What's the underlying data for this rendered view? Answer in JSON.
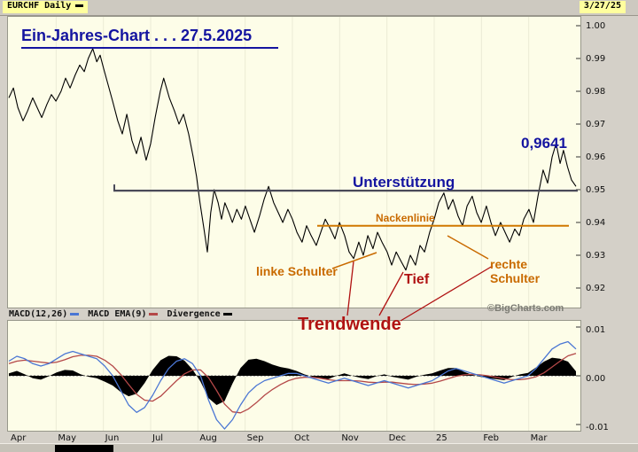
{
  "window": {
    "symbol_label": "EURCHF Daily",
    "date_badge": "3/27/25"
  },
  "annotations": {
    "title": "Ein-Jahres-Chart . . . 27.5.2025",
    "support_label": "Unterstützung",
    "neckline_label": "Nackenlinie",
    "left_shoulder": "linke Schulter",
    "right_shoulder_line1": "rechte",
    "right_shoulder_line2": "Schulter",
    "low_label": "Tief",
    "reversal_label": "Trendwende",
    "price_peak": "0,9641",
    "watermark": "©BigCharts.com"
  },
  "legend": {
    "macd": "MACD(12,26)",
    "ema": "MACD EMA(9)",
    "divergence": "Divergence"
  },
  "x_axis_months": [
    "Apr",
    "May",
    "Jun",
    "Jul",
    "Aug",
    "Sep",
    "Oct",
    "Nov",
    "Dec",
    "25",
    "Feb",
    "Mar"
  ],
  "price_axis": [
    "1.00",
    "0.99",
    "0.98",
    "0.97",
    "0.96",
    "0.95",
    "0.94",
    "0.93",
    "0.92"
  ],
  "macd_axis": [
    "0.01",
    "0.00",
    "-0.01"
  ],
  "colors": {
    "navy": "#1414a0",
    "orange": "#c96a00",
    "darkred": "#b01212",
    "priceline": "#000000",
    "macdline": "#4a76d4",
    "emaline": "#b44848",
    "histogram": "#000000",
    "support": "#4a4a58",
    "neckline": "#d07800",
    "chartbg": "#fdfde8",
    "framebg": "#d4d0c8",
    "chipbg": "#ffff9e",
    "watermarkgray": "#7c7c74"
  },
  "overlay_lines": {
    "orange": [
      [
        375,
        303,
        425,
        285
      ],
      [
        505,
        266,
        551,
        292
      ]
    ],
    "red": [
      [
        392,
        356,
        399,
        295
      ],
      [
        428,
        356,
        455,
        307
      ],
      [
        452,
        362,
        556,
        300
      ]
    ]
  },
  "chart_data": [
    {
      "type": "line",
      "title": "EURCHF daily close, Apr 2024 - Mar 2025",
      "ylabel": "EURCHF",
      "ylim": [
        0.92,
        1.0
      ],
      "y_ticks": [
        1.0,
        0.99,
        0.98,
        0.97,
        0.96,
        0.95,
        0.94,
        0.93,
        0.92
      ],
      "x_categories": [
        "Apr",
        "May",
        "Jun",
        "Jul",
        "Aug",
        "Sep",
        "Oct",
        "Nov",
        "Dec",
        "25",
        "Feb",
        "Mar"
      ],
      "support_level": 0.9497,
      "neckline_level": 0.939,
      "peak_label_value": 0.9641,
      "grid": "vertical-months",
      "legend_position": "none",
      "series": [
        {
          "name": "EURCHF close",
          "points": [
            [
              0.0,
              0.978
            ],
            [
              0.008,
              0.981
            ],
            [
              0.016,
              0.975
            ],
            [
              0.025,
              0.971
            ],
            [
              0.033,
              0.974
            ],
            [
              0.042,
              0.978
            ],
            [
              0.05,
              0.975
            ],
            [
              0.058,
              0.972
            ],
            [
              0.067,
              0.976
            ],
            [
              0.075,
              0.979
            ],
            [
              0.083,
              0.977
            ],
            [
              0.092,
              0.98
            ],
            [
              0.1,
              0.984
            ],
            [
              0.108,
              0.981
            ],
            [
              0.117,
              0.985
            ],
            [
              0.125,
              0.988
            ],
            [
              0.133,
              0.986
            ],
            [
              0.14,
              0.99
            ],
            [
              0.148,
              0.993
            ],
            [
              0.155,
              0.989
            ],
            [
              0.161,
              0.991
            ],
            [
              0.167,
              0.987
            ],
            [
              0.175,
              0.982
            ],
            [
              0.183,
              0.977
            ],
            [
              0.192,
              0.971
            ],
            [
              0.2,
              0.967
            ],
            [
              0.208,
              0.973
            ],
            [
              0.217,
              0.965
            ],
            [
              0.225,
              0.961
            ],
            [
              0.233,
              0.966
            ],
            [
              0.242,
              0.959
            ],
            [
              0.25,
              0.964
            ],
            [
              0.258,
              0.972
            ],
            [
              0.267,
              0.98
            ],
            [
              0.273,
              0.984
            ],
            [
              0.283,
              0.978
            ],
            [
              0.292,
              0.974
            ],
            [
              0.3,
              0.97
            ],
            [
              0.308,
              0.973
            ],
            [
              0.317,
              0.967
            ],
            [
              0.325,
              0.96
            ],
            [
              0.331,
              0.954
            ],
            [
              0.337,
              0.946
            ],
            [
              0.344,
              0.938
            ],
            [
              0.35,
              0.931
            ],
            [
              0.356,
              0.943
            ],
            [
              0.362,
              0.95
            ],
            [
              0.369,
              0.946
            ],
            [
              0.375,
              0.941
            ],
            [
              0.381,
              0.946
            ],
            [
              0.388,
              0.943
            ],
            [
              0.394,
              0.94
            ],
            [
              0.402,
              0.944
            ],
            [
              0.41,
              0.941
            ],
            [
              0.417,
              0.945
            ],
            [
              0.425,
              0.941
            ],
            [
              0.433,
              0.937
            ],
            [
              0.442,
              0.942
            ],
            [
              0.45,
              0.947
            ],
            [
              0.458,
              0.951
            ],
            [
              0.467,
              0.946
            ],
            [
              0.475,
              0.943
            ],
            [
              0.483,
              0.94
            ],
            [
              0.492,
              0.944
            ],
            [
              0.5,
              0.941
            ],
            [
              0.508,
              0.937
            ],
            [
              0.517,
              0.934
            ],
            [
              0.525,
              0.939
            ],
            [
              0.533,
              0.936
            ],
            [
              0.542,
              0.933
            ],
            [
              0.55,
              0.937
            ],
            [
              0.558,
              0.941
            ],
            [
              0.567,
              0.938
            ],
            [
              0.575,
              0.935
            ],
            [
              0.583,
              0.94
            ],
            [
              0.592,
              0.936
            ],
            [
              0.6,
              0.931
            ],
            [
              0.608,
              0.929
            ],
            [
              0.617,
              0.934
            ],
            [
              0.625,
              0.93
            ],
            [
              0.633,
              0.936
            ],
            [
              0.642,
              0.932
            ],
            [
              0.65,
              0.937
            ],
            [
              0.658,
              0.934
            ],
            [
              0.667,
              0.931
            ],
            [
              0.675,
              0.927
            ],
            [
              0.683,
              0.931
            ],
            [
              0.692,
              0.928
            ],
            [
              0.7,
              0.9255
            ],
            [
              0.708,
              0.93
            ],
            [
              0.717,
              0.927
            ],
            [
              0.725,
              0.933
            ],
            [
              0.733,
              0.931
            ],
            [
              0.742,
              0.937
            ],
            [
              0.75,
              0.941
            ],
            [
              0.758,
              0.946
            ],
            [
              0.767,
              0.949
            ],
            [
              0.775,
              0.944
            ],
            [
              0.783,
              0.947
            ],
            [
              0.792,
              0.942
            ],
            [
              0.8,
              0.939
            ],
            [
              0.808,
              0.945
            ],
            [
              0.817,
              0.948
            ],
            [
              0.825,
              0.943
            ],
            [
              0.833,
              0.94
            ],
            [
              0.842,
              0.945
            ],
            [
              0.85,
              0.94
            ],
            [
              0.858,
              0.936
            ],
            [
              0.867,
              0.94
            ],
            [
              0.875,
              0.937
            ],
            [
              0.883,
              0.934
            ],
            [
              0.892,
              0.938
            ],
            [
              0.9,
              0.936
            ],
            [
              0.908,
              0.941
            ],
            [
              0.917,
              0.944
            ],
            [
              0.925,
              0.94
            ],
            [
              0.933,
              0.948
            ],
            [
              0.942,
              0.956
            ],
            [
              0.95,
              0.952
            ],
            [
              0.958,
              0.96
            ],
            [
              0.965,
              0.9641
            ],
            [
              0.972,
              0.958
            ],
            [
              0.978,
              0.962
            ],
            [
              0.985,
              0.957
            ],
            [
              0.992,
              0.953
            ],
            [
              1.0,
              0.951
            ]
          ]
        }
      ]
    },
    {
      "type": "line",
      "title": "MACD(12,26) with EMA(9) and divergence histogram",
      "ylim": [
        -0.01,
        0.01
      ],
      "y_ticks": [
        0.01,
        0.0,
        -0.01
      ],
      "grid": "vertical-months, dashed zero line",
      "legend_position": "top",
      "series": [
        {
          "name": "MACD(12,26)",
          "values": [
            0.003,
            0.004,
            0.0035,
            0.0025,
            0.002,
            0.0025,
            0.0035,
            0.0045,
            0.005,
            0.0045,
            0.004,
            0.0035,
            0.002,
            0.0,
            -0.003,
            -0.006,
            -0.0075,
            -0.0065,
            -0.004,
            -0.001,
            0.0015,
            0.003,
            0.0035,
            0.0025,
            0.0,
            -0.005,
            -0.009,
            -0.011,
            -0.009,
            -0.006,
            -0.0035,
            -0.002,
            -0.001,
            -0.0005,
            0.0,
            0.0005,
            0.0005,
            0.0,
            -0.0005,
            -0.001,
            -0.0015,
            -0.001,
            -0.0005,
            -0.001,
            -0.0015,
            -0.002,
            -0.0015,
            -0.001,
            -0.0015,
            -0.002,
            -0.0025,
            -0.002,
            -0.0015,
            -0.001,
            0.0,
            0.001,
            0.0015,
            0.001,
            0.0005,
            0.0,
            -0.0005,
            -0.001,
            -0.0015,
            -0.001,
            -0.0005,
            0.0,
            0.0015,
            0.0035,
            0.0055,
            0.0065,
            0.007,
            0.0055
          ]
        },
        {
          "name": "MACD EMA(9)",
          "values": [
            0.0025,
            0.003,
            0.0032,
            0.003,
            0.0028,
            0.0026,
            0.0028,
            0.0033,
            0.0039,
            0.0042,
            0.0042,
            0.004,
            0.0032,
            0.002,
            0.0003,
            -0.0018,
            -0.0038,
            -0.005,
            -0.0052,
            -0.0042,
            -0.0026,
            -0.001,
            0.0004,
            0.0012,
            0.0012,
            -0.0004,
            -0.003,
            -0.0058,
            -0.0074,
            -0.0076,
            -0.0068,
            -0.0055,
            -0.004,
            -0.0028,
            -0.0018,
            -0.001,
            -0.0005,
            -0.0003,
            -0.0003,
            -0.0005,
            -0.0008,
            -0.001,
            -0.001,
            -0.001,
            -0.0011,
            -0.0013,
            -0.0014,
            -0.0013,
            -0.0013,
            -0.0015,
            -0.0017,
            -0.0018,
            -0.0017,
            -0.0015,
            -0.0011,
            -0.0006,
            -0.0001,
            0.0002,
            0.0003,
            0.0002,
            0.0,
            -0.0003,
            -0.0006,
            -0.0008,
            -0.0008,
            -0.0006,
            -0.0002,
            0.0006,
            0.0018,
            0.003,
            0.0041,
            0.0046
          ]
        },
        {
          "name": "Divergence",
          "values": [
            0.0005,
            0.001,
            0.0003,
            -0.0005,
            -0.0008,
            -0.0001,
            0.0007,
            0.0012,
            0.0011,
            0.0003,
            -0.0002,
            -0.0005,
            -0.0012,
            -0.002,
            -0.0033,
            -0.0042,
            -0.0037,
            -0.0015,
            0.0012,
            0.0032,
            0.0041,
            0.004,
            0.0031,
            0.0013,
            -0.0012,
            -0.0046,
            -0.006,
            -0.0052,
            -0.0016,
            0.0016,
            0.0033,
            0.0035,
            0.003,
            0.0023,
            0.0018,
            0.0015,
            0.001,
            0.0003,
            -0.0002,
            -0.0005,
            -0.0007,
            0.0,
            0.0005,
            0.0,
            -0.0004,
            -0.0007,
            -0.0001,
            0.0003,
            -0.0002,
            -0.0005,
            -0.0008,
            -0.0002,
            0.0002,
            0.0005,
            0.0011,
            0.0016,
            0.0016,
            0.0008,
            0.0002,
            -0.0002,
            -0.0005,
            -0.0007,
            -0.0009,
            -0.0002,
            0.0003,
            0.0006,
            0.0017,
            0.0029,
            0.0037,
            0.0035,
            0.0029,
            0.0009
          ]
        }
      ]
    }
  ]
}
